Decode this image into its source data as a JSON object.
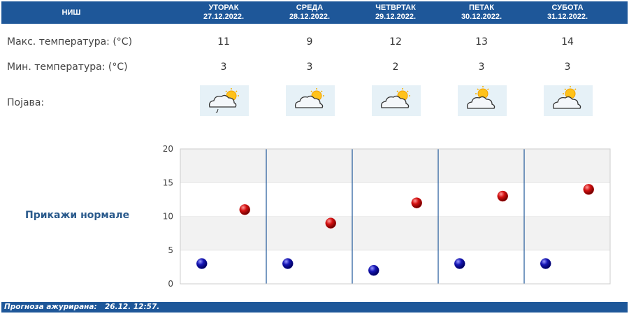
{
  "header": {
    "city": "НИШ",
    "days": [
      {
        "day": "УТОРАК",
        "date": "27.12.2022."
      },
      {
        "day": "СРЕДА",
        "date": "28.12.2022."
      },
      {
        "day": "ЧЕТВРТАК",
        "date": "29.12.2022."
      },
      {
        "day": "ПЕТАК",
        "date": "30.12.2022."
      },
      {
        "day": "СУБОТА",
        "date": "31.12.2022."
      }
    ]
  },
  "rows": {
    "max_label": "Макс. температура: (°C)",
    "min_label": "Мин. температура: (°C)",
    "phenomenon_label": "Појава:",
    "max_values": [
      "11",
      "9",
      "12",
      "13",
      "14"
    ],
    "min_values": [
      "3",
      "3",
      "2",
      "3",
      "3"
    ],
    "icons": [
      "cloud-sun-drizzle-icon",
      "cloud-sun-icon",
      "cloud-sun-icon",
      "cloud-sun-icon",
      "cloud-sun-icon"
    ]
  },
  "normals_button": "Прикажи нормале",
  "chart_data": {
    "type": "scatter",
    "categories": [
      "27.12.2022.",
      "28.12.2022.",
      "29.12.2022.",
      "30.12.2022.",
      "31.12.2022."
    ],
    "series": [
      {
        "values": [
          3,
          3,
          2,
          3,
          3
        ],
        "color": "#1a1aaa"
      },
      {
        "values": [
          11,
          9,
          12,
          13,
          14
        ],
        "color": "#cc1111"
      }
    ],
    "ylim": [
      0,
      20
    ],
    "yticks": [
      "0",
      "5",
      "10",
      "15",
      "20"
    ],
    "grid": true
  },
  "footer": {
    "label": "Прогноза ажурирана:",
    "value": "26.12. 12:57."
  },
  "colors": {
    "header_bg": "#1e5799",
    "icon_bg": "#e6f1f7",
    "divider": "#1e5799"
  }
}
